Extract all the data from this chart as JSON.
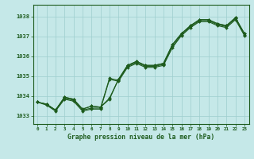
{
  "title": "Graphe pression niveau de la mer (hPa)",
  "xlabel_ticks": [
    0,
    1,
    2,
    3,
    4,
    5,
    6,
    7,
    8,
    9,
    10,
    11,
    12,
    13,
    14,
    15,
    16,
    17,
    18,
    19,
    20,
    21,
    22,
    23
  ],
  "ylim": [
    1032.6,
    1038.6
  ],
  "xlim": [
    -0.5,
    23.5
  ],
  "yticks": [
    1033,
    1034,
    1035,
    1036,
    1037,
    1038
  ],
  "bg_color": "#c5e8e8",
  "grid_color": "#9ecece",
  "line_color": "#1e5c1e",
  "series1": [
    1033.7,
    1033.55,
    1033.25,
    1033.85,
    1033.75,
    1033.25,
    1033.35,
    1033.35,
    1034.85,
    1034.75,
    1035.45,
    1035.65,
    1035.45,
    1035.45,
    1035.55,
    1036.45,
    1037.05,
    1037.45,
    1037.75,
    1037.75,
    1037.55,
    1037.45,
    1037.85,
    1037.05
  ],
  "series2": [
    1033.7,
    1033.6,
    1033.3,
    1033.9,
    1033.8,
    1033.3,
    1033.4,
    1033.4,
    1034.9,
    1034.8,
    1035.5,
    1035.7,
    1035.5,
    1035.5,
    1035.6,
    1036.5,
    1037.1,
    1037.5,
    1037.8,
    1037.8,
    1037.6,
    1037.5,
    1037.9,
    1037.1
  ],
  "series3": [
    1033.7,
    1033.6,
    1033.3,
    1033.95,
    1033.85,
    1033.35,
    1033.5,
    1033.45,
    1033.85,
    1034.85,
    1035.55,
    1035.75,
    1035.55,
    1035.55,
    1035.65,
    1036.6,
    1037.15,
    1037.55,
    1037.85,
    1037.85,
    1037.65,
    1037.55,
    1037.95,
    1037.15
  ],
  "series4": [
    1033.7,
    1033.6,
    1033.3,
    1033.95,
    1033.85,
    1033.35,
    1033.5,
    1033.45,
    1033.9,
    1034.85,
    1035.55,
    1035.75,
    1035.55,
    1035.55,
    1035.65,
    1036.6,
    1037.15,
    1037.55,
    1037.85,
    1037.85,
    1037.65,
    1037.55,
    1037.95,
    1037.15
  ]
}
